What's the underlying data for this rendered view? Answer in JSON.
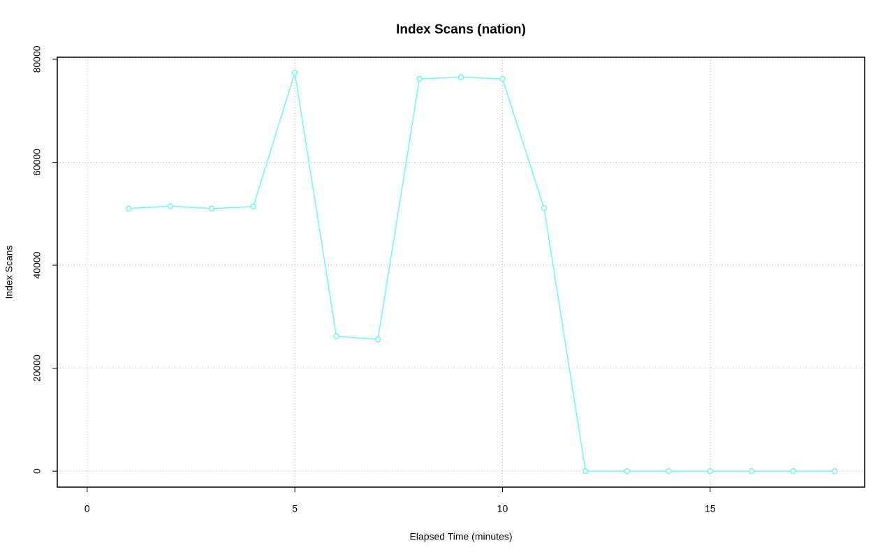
{
  "chart_data": {
    "type": "line",
    "title": "Index Scans (nation)",
    "xlabel": "Elapsed Time (minutes)",
    "ylabel": "Index Scans",
    "x": [
      1,
      2,
      3,
      4,
      5,
      6,
      7,
      8,
      9,
      10,
      11,
      12,
      13,
      14,
      15,
      16,
      17,
      18
    ],
    "series": [
      {
        "name": "Index Scans",
        "color": "#70f8f8",
        "values": [
          51000,
          51500,
          51000,
          51400,
          77400,
          26200,
          25600,
          76200,
          76500,
          76200,
          51100,
          0,
          0,
          0,
          0,
          0,
          0,
          0
        ]
      }
    ],
    "xlim": [
      -0.72,
      18.72
    ],
    "xticks": [
      0,
      5,
      10,
      15
    ],
    "ylim": [
      -3100,
      80400
    ],
    "yticks": [
      0,
      20000,
      40000,
      60000,
      80000
    ],
    "grid": true
  }
}
